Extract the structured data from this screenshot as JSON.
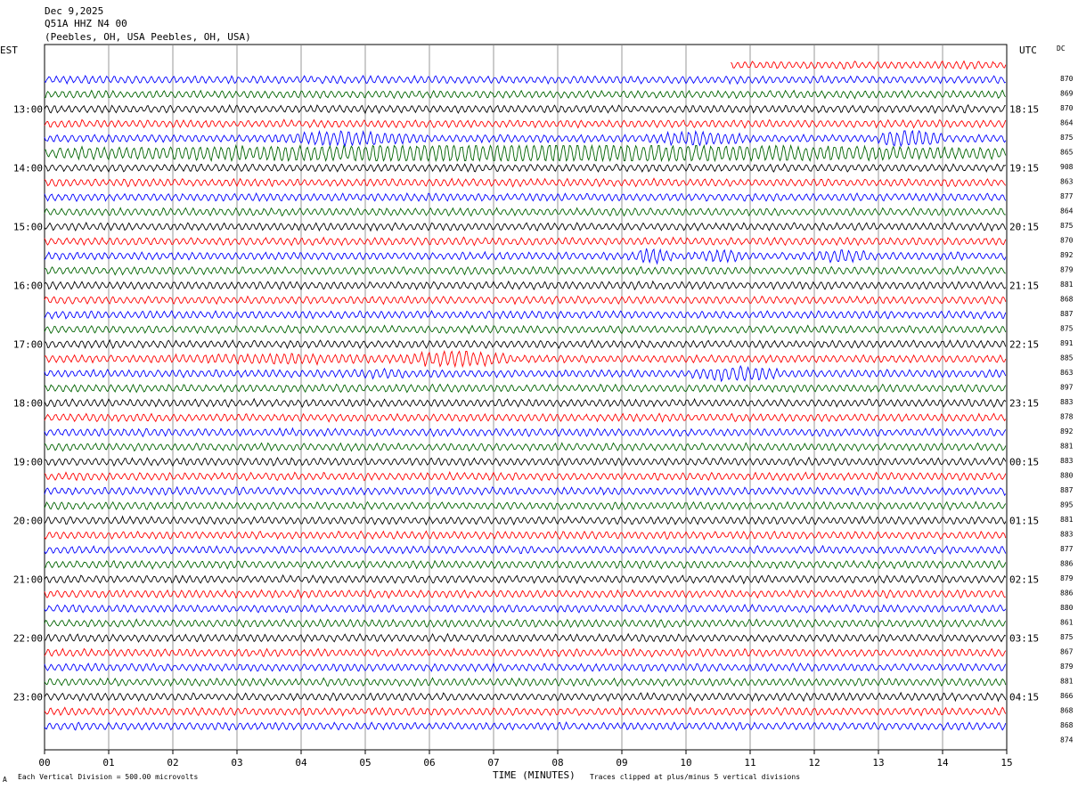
{
  "header": {
    "date": "Dec 9,2025",
    "station": "Q51A HHZ N4 00",
    "location": "(Peebles, OH, USA Peebles, OH, USA)"
  },
  "labels": {
    "left_tz": "EST",
    "right_tz": "UTC",
    "dc": "DC",
    "xlabel": "TIME (MINUTES)",
    "footer_left": "Each Vertical Division =  500.00 microvolts",
    "footer_right": "Traces clipped at plus/minus 5 vertical divisions",
    "corner_mark": "A"
  },
  "chart_data": {
    "type": "line",
    "title": "Q51A HHZ N4 00",
    "xlabel": "TIME (MINUTES)",
    "xlim": [
      0,
      15
    ],
    "x_ticks": [
      "00",
      "01",
      "02",
      "03",
      "04",
      "05",
      "06",
      "07",
      "08",
      "09",
      "10",
      "11",
      "12",
      "13",
      "14",
      "15"
    ],
    "trace_colors": [
      "#ff0000",
      "#0000ff",
      "#006400",
      "#000000"
    ],
    "first_trace_start_minute": 10.7,
    "left_hour_labels": [
      "13:00",
      "14:00",
      "15:00",
      "16:00",
      "17:00",
      "18:00",
      "19:00",
      "20:00",
      "21:00",
      "22:00",
      "23:00"
    ],
    "right_hour_labels": [
      "18:15",
      "19:15",
      "20:15",
      "21:15",
      "22:15",
      "23:15",
      "00:15",
      "01:15",
      "02:15",
      "03:15",
      "04:15"
    ],
    "dc_offsets": [
      870,
      869,
      870,
      864,
      875,
      865,
      908,
      863,
      877,
      864,
      875,
      870,
      892,
      879,
      881,
      868,
      887,
      875,
      891,
      885,
      863,
      897,
      883,
      878,
      892,
      881,
      883,
      880,
      887,
      895,
      881,
      883,
      877,
      886,
      879,
      886,
      880,
      861,
      875,
      867,
      879,
      881,
      866,
      868,
      868,
      874
    ],
    "events": [
      {
        "trace": 5,
        "start": 3.5,
        "end": 6.0,
        "amp": 2.2
      },
      {
        "trace": 5,
        "start": 9.3,
        "end": 11.0,
        "amp": 2.2
      },
      {
        "trace": 5,
        "start": 13.0,
        "end": 14.0,
        "amp": 2.8
      },
      {
        "trace": 6,
        "start": 0,
        "end": 15,
        "amp": 3.0
      },
      {
        "trace": 13,
        "start": 9.1,
        "end": 9.8,
        "amp": 2.4
      },
      {
        "trace": 13,
        "start": 10.1,
        "end": 11.0,
        "amp": 2.0
      },
      {
        "trace": 13,
        "start": 11.9,
        "end": 13.0,
        "amp": 2.0
      },
      {
        "trace": 20,
        "start": 0,
        "end": 7.5,
        "amp": 1.5
      },
      {
        "trace": 20,
        "start": 5.5,
        "end": 7.3,
        "amp": 2.6
      },
      {
        "trace": 21,
        "start": 4.0,
        "end": 6.5,
        "amp": 1.3
      },
      {
        "trace": 21,
        "start": 10.1,
        "end": 11.5,
        "amp": 2.4
      }
    ]
  }
}
